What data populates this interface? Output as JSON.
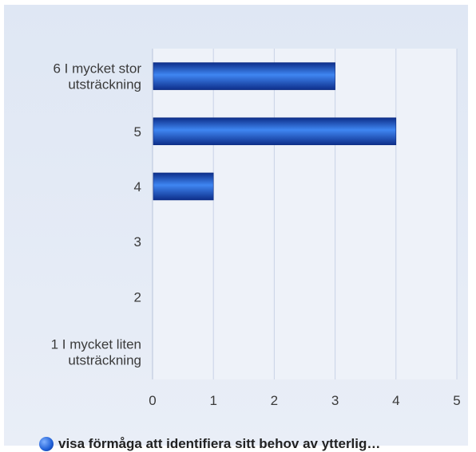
{
  "chart_data": {
    "type": "bar",
    "orientation": "horizontal",
    "categories": [
      "6 I mycket stor\nutsträckning",
      "5",
      "4",
      "3",
      "2",
      "1 I mycket liten\nutsträckning"
    ],
    "series": [
      {
        "name": "visa förmåga att identifiera sitt behov av ytterlig…",
        "values": [
          3,
          4,
          1,
          0,
          0,
          0
        ]
      }
    ],
    "xlim": [
      0,
      5
    ],
    "xticks": [
      0,
      1,
      2,
      3,
      4,
      5
    ],
    "grid": true,
    "legend_position": "bottom",
    "colors": {
      "bar": "#1f5fd6",
      "bar_dark": "#0d2e8a",
      "grid": "#c9d3e6"
    }
  }
}
